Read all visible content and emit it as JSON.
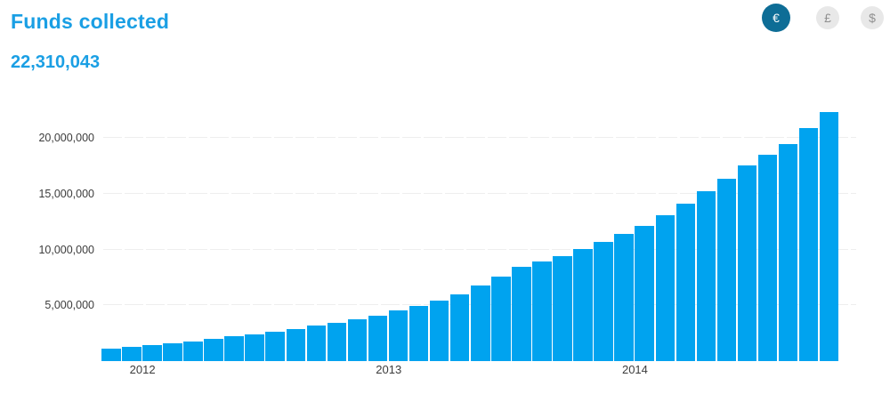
{
  "header": {
    "title": "Funds collected",
    "total": "22,310,043"
  },
  "currency_toggle": {
    "options": [
      {
        "id": "eur",
        "label": "€",
        "active": true
      },
      {
        "id": "gbp",
        "label": "£",
        "active": false
      },
      {
        "id": "usd",
        "label": "$",
        "active": false
      }
    ]
  },
  "colors": {
    "bar": "#00a3ef",
    "heading": "#1a9fe4",
    "active_currency_bg": "#0e6d96",
    "active_currency_text": "#ffffff",
    "inactive_currency_bg": "#e8e8e8",
    "inactive_currency_text": "#909090",
    "gridline": "#eeeeee",
    "axis_text": "#3c3c3c"
  },
  "chart_data": {
    "type": "bar",
    "title": "Funds collected",
    "unit": "EUR",
    "grid": "horizontal-dashed",
    "legend": "none",
    "bar_color": "#00a3ef",
    "ylim": [
      0,
      22800000
    ],
    "x": [
      "Nov 2011",
      "Dec 2011",
      "Jan 2012",
      "Feb 2012",
      "Mar 2012",
      "Apr 2012",
      "May 2012",
      "Jun 2012",
      "Jul 2012",
      "Aug 2012",
      "Sep 2012",
      "Oct 2012",
      "Nov 2012",
      "Dec 2012",
      "Jan 2013",
      "Feb 2013",
      "Mar 2013",
      "Apr 2013",
      "May 2013",
      "Jun 2013",
      "Jul 2013",
      "Aug 2013",
      "Sep 2013",
      "Oct 2013",
      "Nov 2013",
      "Dec 2013",
      "Jan 2014",
      "Feb 2014",
      "Mar 2014",
      "Apr 2014",
      "May 2014",
      "Jun 2014",
      "Jul 2014",
      "Aug 2014",
      "Sep 2014",
      "Oct 2014"
    ],
    "values": [
      1100000,
      1250000,
      1400000,
      1560000,
      1770000,
      1980000,
      2200000,
      2430000,
      2670000,
      2910000,
      3170000,
      3440000,
      3720000,
      4100000,
      4550000,
      4950000,
      5420000,
      6000000,
      6800000,
      7600000,
      8450000,
      8950000,
      9400000,
      10050000,
      10700000,
      11400000,
      12150000,
      13100000,
      14100000,
      15200000,
      16350000,
      17500000,
      18500000,
      19450000,
      20850000,
      22310043
    ],
    "yticks": [
      {
        "value": 5000000,
        "label": "5,000,000"
      },
      {
        "value": 10000000,
        "label": "10,000,000"
      },
      {
        "value": 15000000,
        "label": "15,000,000"
      },
      {
        "value": 20000000,
        "label": "20,000,000"
      }
    ],
    "xticks": [
      {
        "label": "2012",
        "index": 2
      },
      {
        "label": "2013",
        "index": 14
      },
      {
        "label": "2014",
        "index": 26
      }
    ]
  }
}
